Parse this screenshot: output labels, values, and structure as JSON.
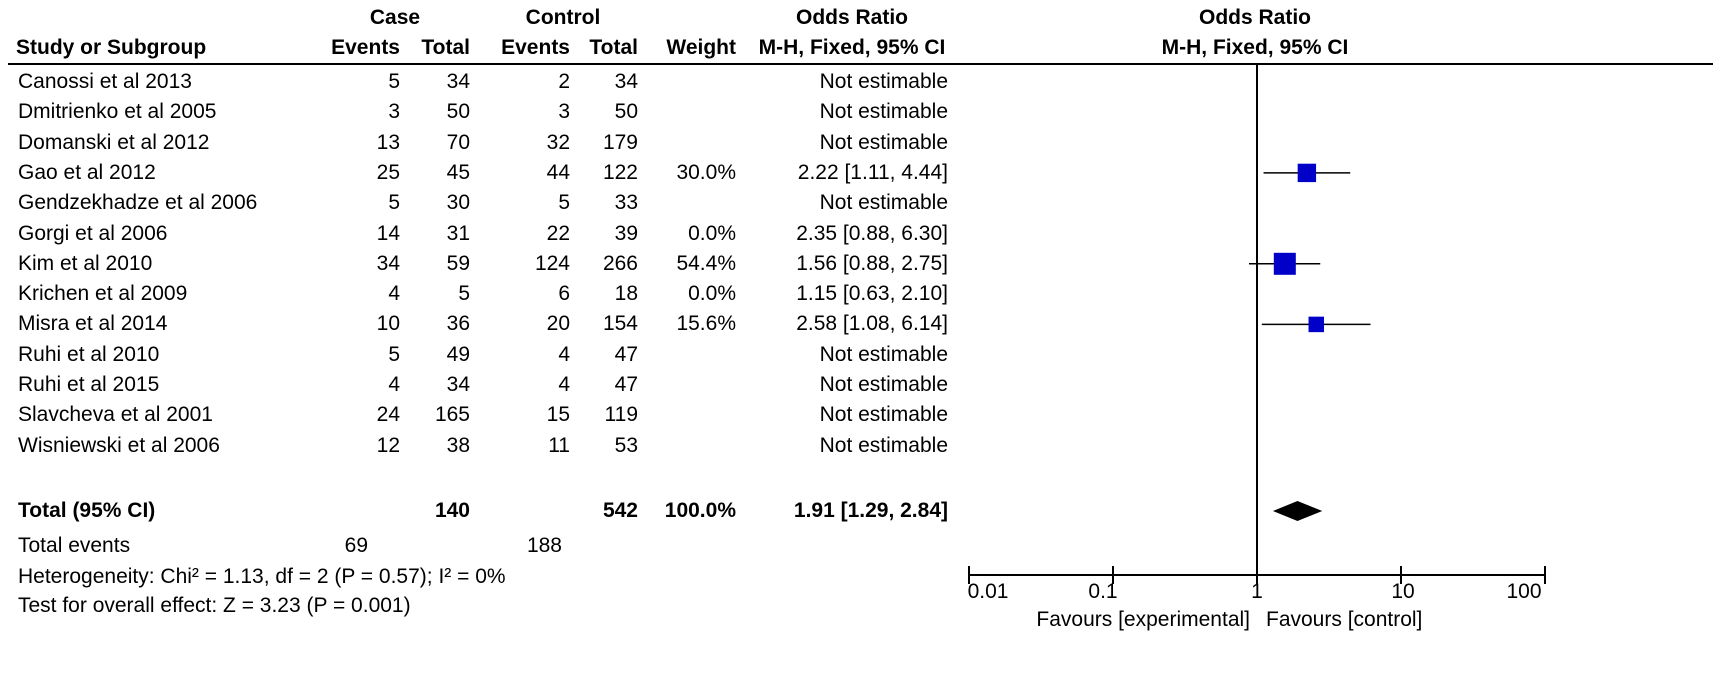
{
  "header": {
    "group1": "Case",
    "group2": "Control",
    "or_title": "Odds Ratio",
    "or_method": "M-H, Fixed, 95% CI",
    "plot_title": "Odds Ratio",
    "plot_method": "M-H, Fixed, 95% CI",
    "study_col": "Study or Subgroup",
    "events": "Events",
    "total": "Total",
    "weight": "Weight"
  },
  "studies": [
    {
      "name": "Canossi et al 2013",
      "case_events": "5",
      "case_total": "34",
      "ctrl_events": "2",
      "ctrl_total": "34",
      "weight": "",
      "or_text": "Not estimable"
    },
    {
      "name": "Dmitrienko et al 2005",
      "case_events": "3",
      "case_total": "50",
      "ctrl_events": "3",
      "ctrl_total": "50",
      "weight": "",
      "or_text": "Not estimable"
    },
    {
      "name": "Domanski et al 2012",
      "case_events": "13",
      "case_total": "70",
      "ctrl_events": "32",
      "ctrl_total": "179",
      "weight": "",
      "or_text": "Not estimable"
    },
    {
      "name": "Gao et al 2012",
      "case_events": "25",
      "case_total": "45",
      "ctrl_events": "44",
      "ctrl_total": "122",
      "weight": "30.0%",
      "or_text": "2.22 [1.11, 4.44]"
    },
    {
      "name": "Gendzekhadze et al 2006",
      "case_events": "5",
      "case_total": "30",
      "ctrl_events": "5",
      "ctrl_total": "33",
      "weight": "",
      "or_text": "Not estimable"
    },
    {
      "name": "Gorgi et al 2006",
      "case_events": "14",
      "case_total": "31",
      "ctrl_events": "22",
      "ctrl_total": "39",
      "weight": "0.0%",
      "or_text": "2.35 [0.88, 6.30]"
    },
    {
      "name": "Kim et al 2010",
      "case_events": "34",
      "case_total": "59",
      "ctrl_events": "124",
      "ctrl_total": "266",
      "weight": "54.4%",
      "or_text": "1.56 [0.88, 2.75]"
    },
    {
      "name": "Krichen et al 2009",
      "case_events": "4",
      "case_total": "5",
      "ctrl_events": "6",
      "ctrl_total": "18",
      "weight": "0.0%",
      "or_text": "1.15 [0.63, 2.10]"
    },
    {
      "name": "Misra et al 2014",
      "case_events": "10",
      "case_total": "36",
      "ctrl_events": "20",
      "ctrl_total": "154",
      "weight": "15.6%",
      "or_text": "2.58 [1.08, 6.14]"
    },
    {
      "name": "Ruhi et al 2010",
      "case_events": "5",
      "case_total": "49",
      "ctrl_events": "4",
      "ctrl_total": "47",
      "weight": "",
      "or_text": "Not estimable"
    },
    {
      "name": "Ruhi et al 2015",
      "case_events": "4",
      "case_total": "34",
      "ctrl_events": "4",
      "ctrl_total": "47",
      "weight": "",
      "or_text": "Not estimable"
    },
    {
      "name": "Slavcheva et al 2001",
      "case_events": "24",
      "case_total": "165",
      "ctrl_events": "15",
      "ctrl_total": "119",
      "weight": "",
      "or_text": "Not estimable"
    },
    {
      "name": "Wisniewski et al 2006",
      "case_events": "12",
      "case_total": "38",
      "ctrl_events": "11",
      "ctrl_total": "53",
      "weight": "",
      "or_text": "Not estimable"
    }
  ],
  "total": {
    "label": "Total (95% CI)",
    "case_total": "140",
    "ctrl_total": "542",
    "weight": "100.0%",
    "or_text": "1.91 [1.29, 2.84]"
  },
  "total_events": {
    "label": "Total events",
    "case": "69",
    "ctrl": "188"
  },
  "heterogeneity": "Heterogeneity: Chi² = 1.13, df = 2 (P = 0.57); I² = 0%",
  "overall_effect": "Test for overall effect: Z = 3.23 (P = 0.001)",
  "axis": {
    "ticks": [
      "0.01",
      "0.1",
      "1",
      "10",
      "100"
    ],
    "favours_left": "Favours [experimental]",
    "favours_right": "Favours [control]"
  },
  "chart_data": {
    "type": "forest",
    "scale": "log",
    "xlim": [
      0.01,
      100
    ],
    "null_line": 1,
    "series": [
      {
        "name": "Gao et al 2012",
        "or": 2.22,
        "lower": 1.11,
        "upper": 4.44,
        "weight": 30.0
      },
      {
        "name": "Kim et al 2010",
        "or": 1.56,
        "lower": 0.88,
        "upper": 2.75,
        "weight": 54.4
      },
      {
        "name": "Misra et al 2014",
        "or": 2.58,
        "lower": 1.08,
        "upper": 6.14,
        "weight": 15.6
      }
    ],
    "pooled": {
      "or": 1.91,
      "lower": 1.29,
      "upper": 2.84
    },
    "colors": {
      "square": "#0000c8",
      "diamond": "#000000"
    }
  }
}
